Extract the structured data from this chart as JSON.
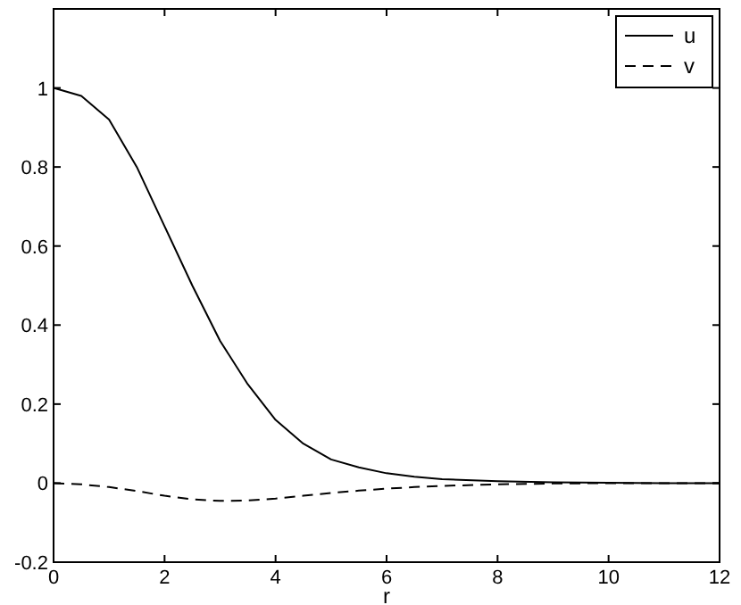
{
  "chart_data": {
    "type": "line",
    "xlabel": "r",
    "x": [
      0,
      0.5,
      1,
      1.5,
      2,
      2.5,
      3,
      3.5,
      4,
      4.5,
      5,
      5.5,
      6,
      6.5,
      7,
      8,
      9,
      10,
      11,
      12
    ],
    "series": [
      {
        "name": "u",
        "color": "#000000",
        "line_style": "solid",
        "values": [
          1,
          0.98,
          0.92,
          0.8,
          0.65,
          0.5,
          0.36,
          0.25,
          0.16,
          0.1,
          0.06,
          0.04,
          0.025,
          0.016,
          0.01,
          0.005,
          0.002,
          0.001,
          0,
          0
        ]
      },
      {
        "name": "v",
        "color": "#000000",
        "line_style": "dashed",
        "values": [
          0,
          -0.003,
          -0.01,
          -0.02,
          -0.032,
          -0.041,
          -0.045,
          -0.044,
          -0.039,
          -0.032,
          -0.025,
          -0.019,
          -0.014,
          -0.01,
          -0.007,
          -0.003,
          -0.001,
          0,
          0,
          0
        ]
      }
    ],
    "xlim": [
      0,
      12
    ],
    "xticks": [
      0,
      2,
      4,
      6,
      8,
      10,
      12
    ],
    "ylim": [
      -0.2,
      1.2
    ],
    "yticks": [
      -0.2,
      0,
      0.2,
      0.4,
      0.6,
      0.8,
      1
    ],
    "legend": "top right",
    "grid": false
  }
}
